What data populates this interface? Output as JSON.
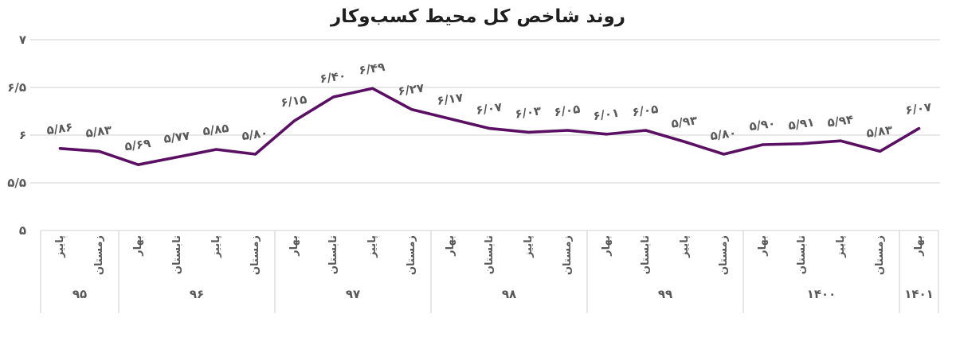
{
  "chart_data": {
    "type": "line",
    "title": "روند شاخص کل محیط کسب‌وکار",
    "legend": "none",
    "grid": "horizontal",
    "colors": {
      "line": "#5a0f63",
      "grid": "#d9d9d9",
      "label": "#595959",
      "title": "#1f1f1f"
    },
    "y_axis": {
      "min": 5,
      "max": 7,
      "ticks": [
        {
          "label": "۷",
          "value": 7
        },
        {
          "label": "۶/۵",
          "value": 6.5
        },
        {
          "label": "۶",
          "value": 6
        },
        {
          "label": "۵/۵",
          "value": 5.5
        },
        {
          "label": "۵",
          "value": 5
        }
      ]
    },
    "points": [
      {
        "year": "۹۵",
        "season": "پاییز",
        "value": 5.86,
        "label": "۵/۸۶"
      },
      {
        "year": "۹۵",
        "season": "زمستان",
        "value": 5.83,
        "label": "۵/۸۳"
      },
      {
        "year": "۹۶",
        "season": "بهار",
        "value": 5.69,
        "label": "۵/۶۹"
      },
      {
        "year": "۹۶",
        "season": "تابستان",
        "value": 5.77,
        "label": "۵/۷۷"
      },
      {
        "year": "۹۶",
        "season": "پاییز",
        "value": 5.85,
        "label": "۵/۸۵"
      },
      {
        "year": "۹۶",
        "season": "زمستان",
        "value": 5.8,
        "label": "۵/۸۰"
      },
      {
        "year": "۹۷",
        "season": "بهار",
        "value": 6.15,
        "label": "۶/۱۵"
      },
      {
        "year": "۹۷",
        "season": "تابستان",
        "value": 6.4,
        "label": "۶/۴۰"
      },
      {
        "year": "۹۷",
        "season": "پاییز",
        "value": 6.49,
        "label": "۶/۴۹"
      },
      {
        "year": "۹۷",
        "season": "زمستان",
        "value": 6.27,
        "label": "۶/۲۷"
      },
      {
        "year": "۹۸",
        "season": "بهار",
        "value": 6.17,
        "label": "۶/۱۷"
      },
      {
        "year": "۹۸",
        "season": "تابستان",
        "value": 6.07,
        "label": "۶/۰۷"
      },
      {
        "year": "۹۸",
        "season": "پاییز",
        "value": 6.03,
        "label": "۶/۰۳"
      },
      {
        "year": "۹۸",
        "season": "زمستان",
        "value": 6.05,
        "label": "۶/۰۵"
      },
      {
        "year": "۹۹",
        "season": "بهار",
        "value": 6.01,
        "label": "۶/۰۱"
      },
      {
        "year": "۹۹",
        "season": "تابستان",
        "value": 6.05,
        "label": "۶/۰۵"
      },
      {
        "year": "۹۹",
        "season": "پاییز",
        "value": 5.93,
        "label": "۵/۹۳"
      },
      {
        "year": "۹۹",
        "season": "زمستان",
        "value": 5.8,
        "label": "۵/۸۰"
      },
      {
        "year": "۱۴۰۰",
        "season": "بهار",
        "value": 5.9,
        "label": "۵/۹۰"
      },
      {
        "year": "۱۴۰۰",
        "season": "تابستان",
        "value": 5.91,
        "label": "۵/۹۱"
      },
      {
        "year": "۱۴۰۰",
        "season": "پاییز",
        "value": 5.94,
        "label": "۵/۹۴"
      },
      {
        "year": "۱۴۰۰",
        "season": "زمستان",
        "value": 5.83,
        "label": "۵/۸۳"
      },
      {
        "year": "۱۴۰۱",
        "season": "بهار",
        "value": 6.07,
        "label": "۶/۰۷"
      }
    ],
    "year_groups": [
      {
        "label": "۹۵",
        "count": 2
      },
      {
        "label": "۹۶",
        "count": 4
      },
      {
        "label": "۹۷",
        "count": 4
      },
      {
        "label": "۹۸",
        "count": 4
      },
      {
        "label": "۹۹",
        "count": 4
      },
      {
        "label": "۱۴۰۰",
        "count": 4
      },
      {
        "label": "۱۴۰۱",
        "count": 1
      }
    ]
  }
}
